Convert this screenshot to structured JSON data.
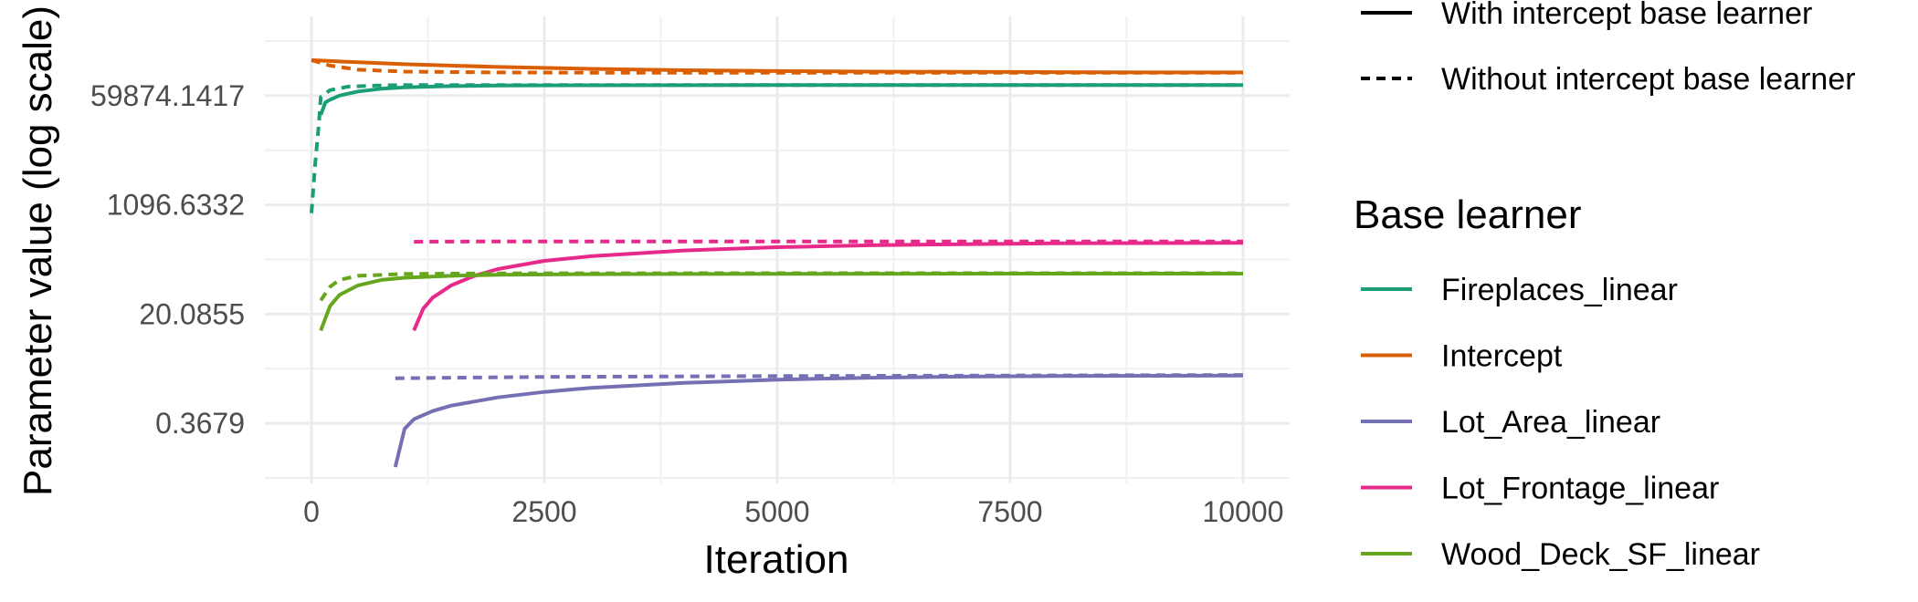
{
  "chart_data": {
    "type": "line",
    "xlabel": "Iteration",
    "ylabel": "Parameter value (log scale)",
    "y_scale": "log",
    "xlim": [
      -500,
      10500
    ],
    "ylim_log": [
      -3.2,
      13.9
    ],
    "x_ticks": [
      0,
      2500,
      5000,
      7500,
      10000
    ],
    "x_tick_labels": [
      "0",
      "2500",
      "5000",
      "7500",
      "10000"
    ],
    "y_ticks": [
      0.3679,
      20.0855,
      1096.6332,
      59874.1417
    ],
    "y_tick_labels": [
      "0.3679",
      "20.0855",
      "1096.6332",
      "59874.1417"
    ],
    "grid": true,
    "legend_position": "right",
    "linetype_legend": {
      "entries": [
        {
          "label": "With intercept base learner",
          "dash": "solid"
        },
        {
          "label": "Without intercept base learner",
          "dash": "dashed"
        }
      ]
    },
    "color_legend": {
      "title": "Base learner",
      "entries": [
        {
          "label": "Fireplaces_linear",
          "color": "#1b9e77"
        },
        {
          "label": "Intercept",
          "color": "#d95f02"
        },
        {
          "label": "Lot_Area_linear",
          "color": "#7570b3"
        },
        {
          "label": "Lot_Frontage_linear",
          "color": "#e7298a"
        },
        {
          "label": "Wood_Deck_SF_linear",
          "color": "#66a61e"
        }
      ]
    },
    "series": [
      {
        "learner": "Intercept",
        "linetype": "With intercept base learner",
        "color": "#d95f02",
        "x": [
          0,
          500,
          1000,
          2000,
          3000,
          4000,
          5000,
          6000,
          7000,
          8000,
          9000,
          10000
        ],
        "log_y": [
          12.3,
          12.22,
          12.15,
          12.05,
          11.98,
          11.93,
          11.9,
          11.88,
          11.87,
          11.86,
          11.85,
          11.85
        ]
      },
      {
        "learner": "Intercept",
        "linetype": "Without intercept base learner",
        "color": "#d95f02",
        "x": [
          0,
          200,
          500,
          1000,
          2000,
          3000,
          5000,
          7500,
          10000
        ],
        "log_y": [
          12.3,
          12.1,
          11.95,
          11.88,
          11.85,
          11.84,
          11.84,
          11.84,
          11.84
        ]
      },
      {
        "learner": "Fireplaces_linear",
        "linetype": "With intercept base learner",
        "color": "#1b9e77",
        "x": [
          100,
          150,
          200,
          300,
          500,
          750,
          1000,
          1500,
          2000,
          3000,
          5000,
          7500,
          10000
        ],
        "log_y": [
          10.3,
          10.75,
          10.85,
          11.0,
          11.15,
          11.25,
          11.3,
          11.35,
          11.37,
          11.38,
          11.39,
          11.39,
          11.39
        ]
      },
      {
        "learner": "Fireplaces_linear",
        "linetype": "Without intercept base learner",
        "color": "#1b9e77",
        "x": [
          0,
          40,
          80,
          100,
          200,
          400,
          700,
          1000,
          2000,
          5000,
          10000
        ],
        "log_y": [
          6.7,
          8.5,
          10.0,
          10.95,
          11.2,
          11.33,
          11.37,
          11.39,
          11.39,
          11.39,
          11.39
        ]
      },
      {
        "learner": "Lot_Frontage_linear",
        "linetype": "With intercept base learner",
        "color": "#e7298a",
        "x": [
          1100,
          1200,
          1300,
          1500,
          1750,
          2000,
          2500,
          3000,
          4000,
          5000,
          6000,
          7000,
          8000,
          9000,
          10000
        ],
        "log_y": [
          2.4,
          3.2,
          3.6,
          4.05,
          4.4,
          4.65,
          4.95,
          5.12,
          5.33,
          5.45,
          5.52,
          5.56,
          5.59,
          5.6,
          5.61
        ]
      },
      {
        "learner": "Lot_Frontage_linear",
        "linetype": "Without intercept base learner",
        "color": "#e7298a",
        "x": [
          1100,
          2000,
          4000,
          6000,
          8000,
          10000
        ],
        "log_y": [
          5.65,
          5.66,
          5.66,
          5.66,
          5.66,
          5.66
        ]
      },
      {
        "learner": "Wood_Deck_SF_linear",
        "linetype": "With intercept base learner",
        "color": "#66a61e",
        "x": [
          100,
          200,
          300,
          500,
          750,
          1000,
          1500,
          2000,
          3000,
          5000,
          7500,
          10000
        ],
        "log_y": [
          2.4,
          3.3,
          3.7,
          4.05,
          4.25,
          4.33,
          4.4,
          4.44,
          4.46,
          4.47,
          4.48,
          4.48
        ]
      },
      {
        "learner": "Wood_Deck_SF_linear",
        "linetype": "Without intercept base learner",
        "color": "#66a61e",
        "x": [
          100,
          200,
          300,
          500,
          1000,
          2000,
          5000,
          10000
        ],
        "log_y": [
          3.5,
          4.0,
          4.25,
          4.4,
          4.47,
          4.49,
          4.5,
          4.5
        ]
      },
      {
        "learner": "Lot_Area_linear",
        "linetype": "With intercept base learner",
        "color": "#7570b3",
        "x": [
          900,
          1000,
          1100,
          1300,
          1500,
          2000,
          2500,
          3000,
          4000,
          5000,
          6000,
          7000,
          8000,
          9000,
          10000
        ],
        "log_y": [
          -2.6,
          -1.2,
          -0.85,
          -0.55,
          -0.35,
          -0.05,
          0.15,
          0.3,
          0.48,
          0.6,
          0.67,
          0.71,
          0.73,
          0.74,
          0.75
        ]
      },
      {
        "learner": "Lot_Area_linear",
        "linetype": "Without intercept base learner",
        "color": "#7570b3",
        "x": [
          900,
          2500,
          5000,
          7500,
          10000
        ],
        "log_y": [
          0.65,
          0.7,
          0.73,
          0.75,
          0.77
        ]
      }
    ]
  }
}
